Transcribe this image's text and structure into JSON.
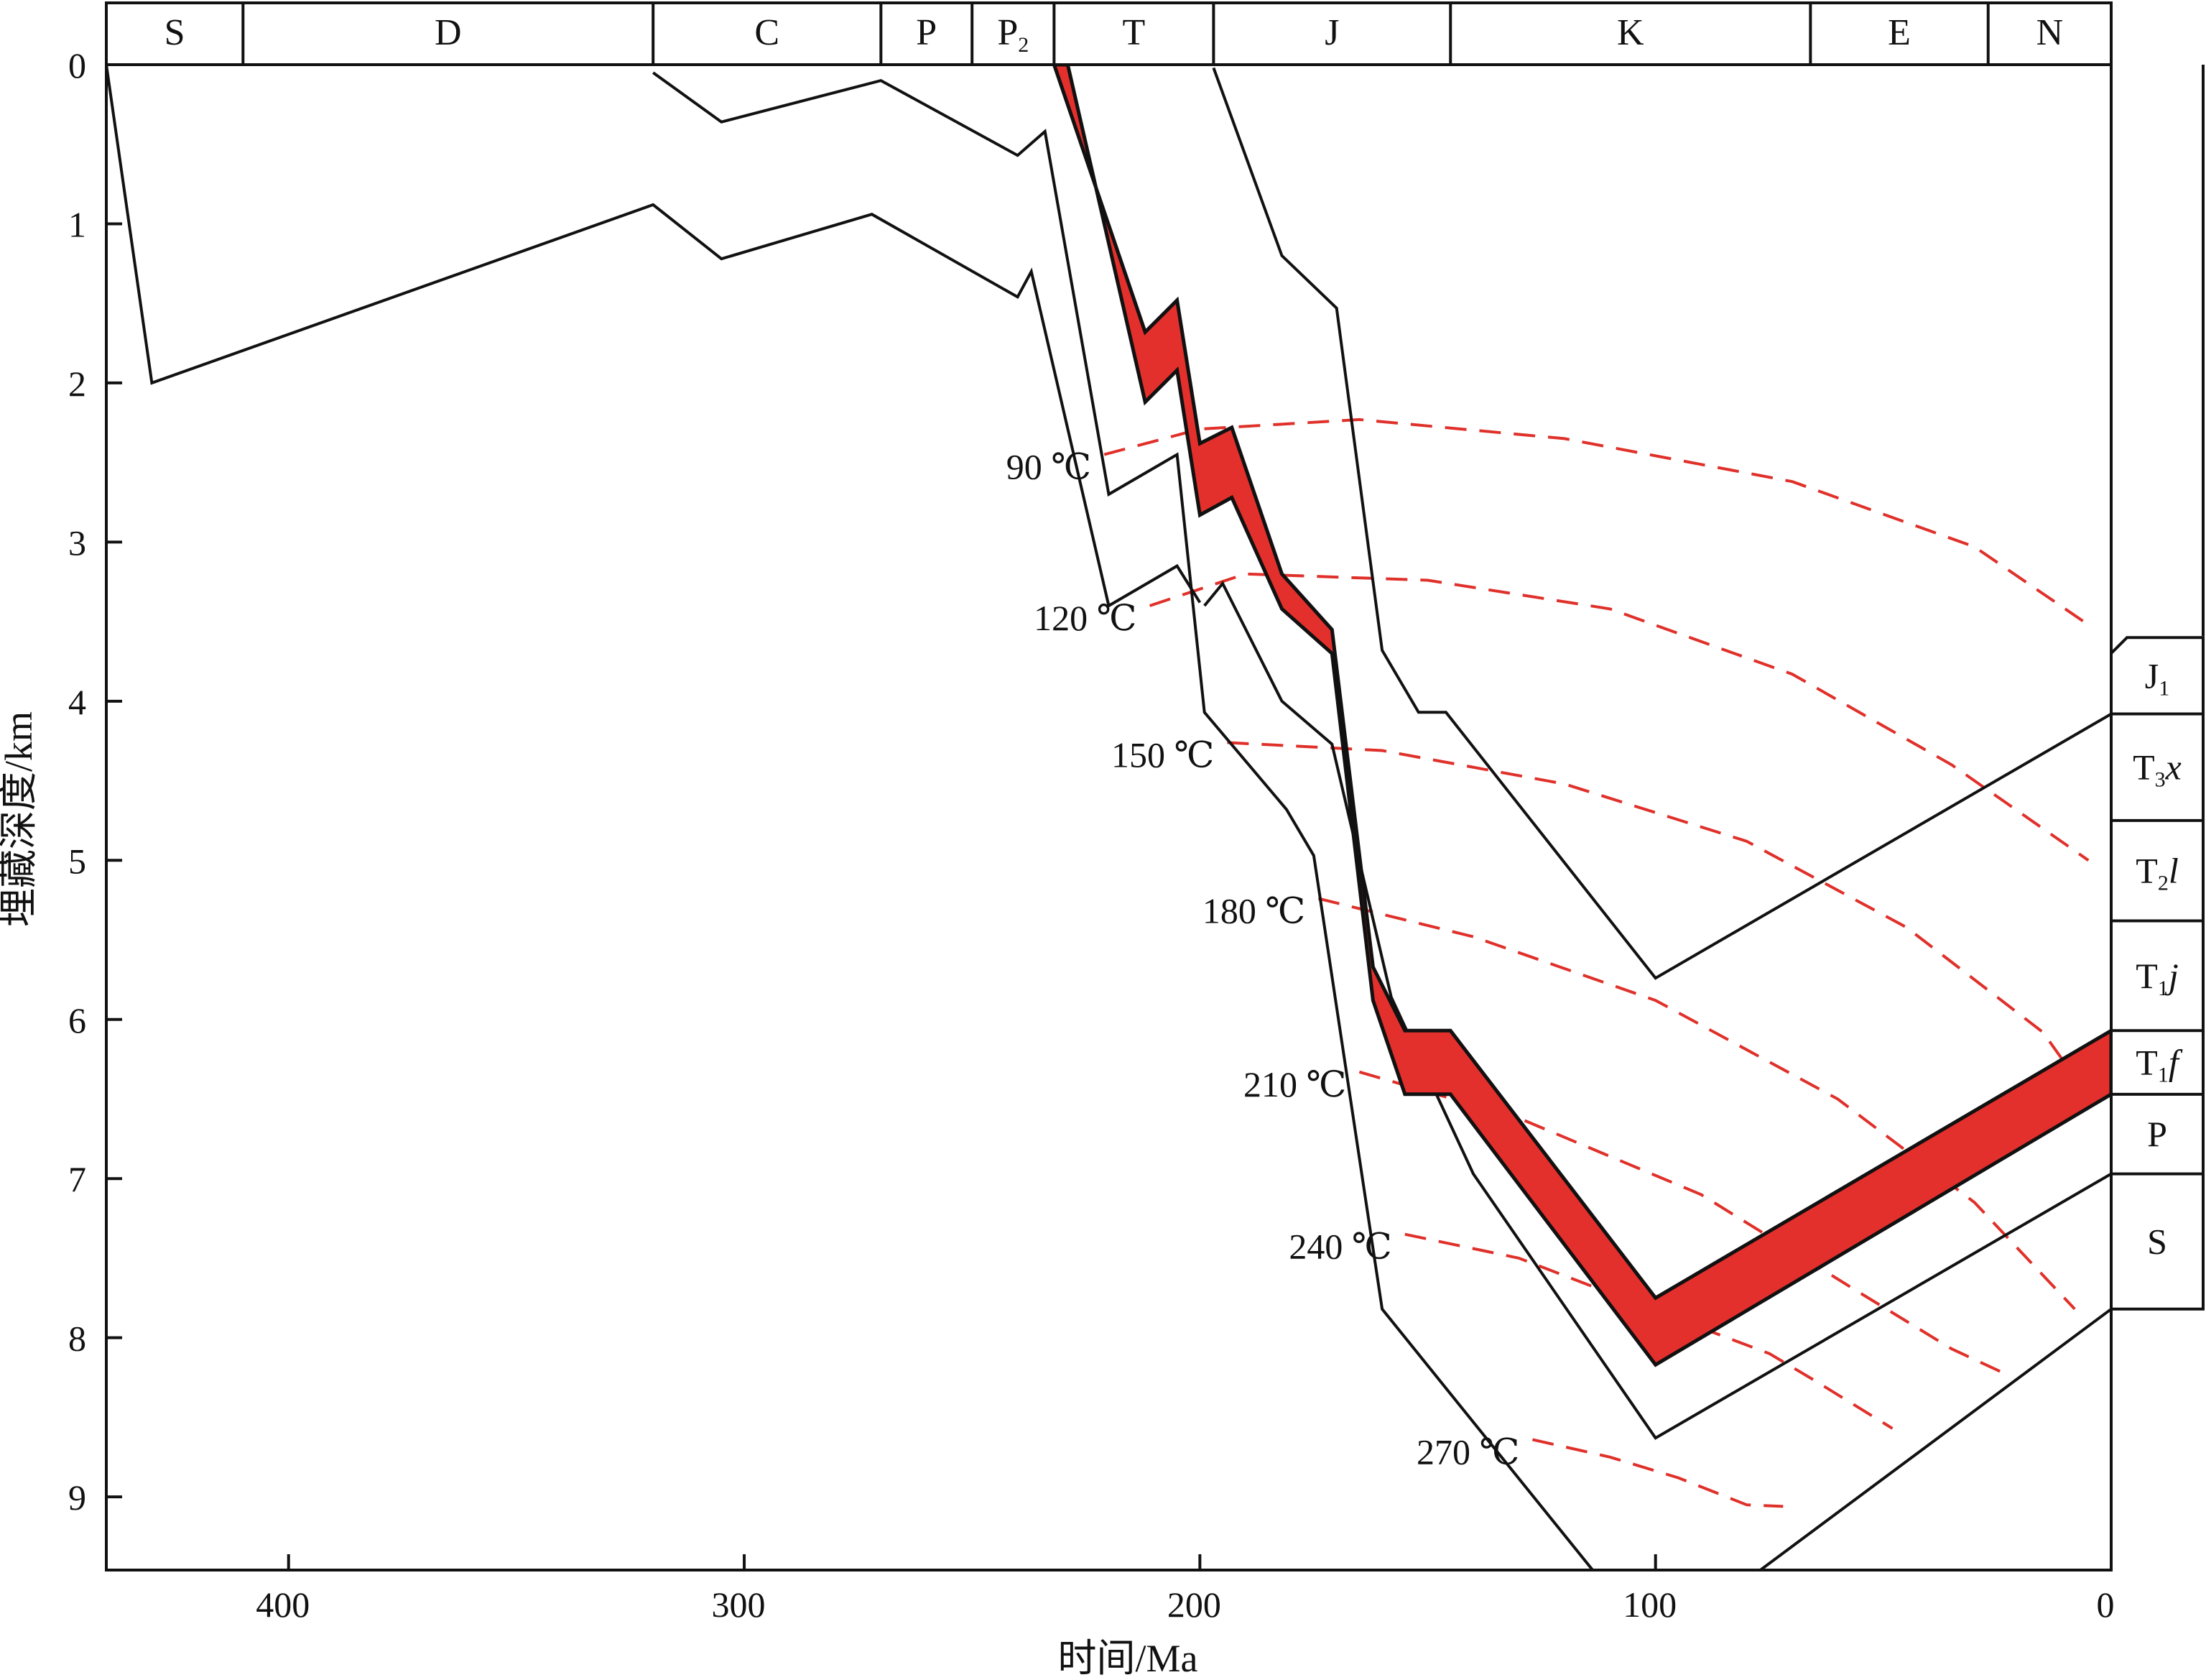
{
  "chart_data": {
    "type": "line",
    "title": "",
    "xlabel": "时间/Ma",
    "ylabel": "埋藏深度/km",
    "xlim": [
      440,
      0
    ],
    "ylim": [
      9.46,
      0
    ],
    "x_ticks": [
      400,
      300,
      200,
      100,
      0
    ],
    "y_ticks": [
      0,
      1,
      2,
      3,
      4,
      5,
      6,
      7,
      8,
      9
    ],
    "grid": false,
    "legend": "none",
    "colors": {
      "line": "#111111",
      "highlight": "#e3302c",
      "isotherm": "#e0302a"
    },
    "periods": [
      {
        "label": "S",
        "start": 440,
        "end": 410
      },
      {
        "label": "D",
        "start": 410,
        "end": 320
      },
      {
        "label": "C",
        "start": 320,
        "end": 270
      },
      {
        "label": "P",
        "start": 270,
        "end": 250
      },
      {
        "label": "P",
        "sub": "2",
        "start": 250,
        "end": 232
      },
      {
        "label": "T",
        "start": 232,
        "end": 197
      },
      {
        "label": "J",
        "start": 197,
        "end": 145
      },
      {
        "label": "K",
        "start": 145,
        "end": 66
      },
      {
        "label": "E",
        "start": 66,
        "end": 27
      },
      {
        "label": "N",
        "start": 27,
        "end": 0
      }
    ],
    "burial_curves": [
      {
        "x": [
          440,
          430,
          320,
          305,
          272,
          240,
          237,
          220,
          205,
          200
        ],
        "y": [
          0,
          2.0,
          0.88,
          1.22,
          0.94,
          1.46,
          1.3,
          3.4,
          3.15,
          3.38
        ]
      },
      {
        "x": [
          320,
          305,
          270,
          240,
          234,
          220,
          205,
          199,
          181,
          175,
          160,
          100,
          0
        ],
        "y": [
          0.05,
          0.36,
          0.1,
          0.57,
          0.42,
          2.7,
          2.45,
          4.07,
          4.68,
          4.97,
          7.82,
          9.95,
          7.82
        ]
      },
      {
        "x": [
          199,
          195,
          182,
          171,
          158,
          140,
          100,
          0
        ],
        "y": [
          3.4,
          3.26,
          4.0,
          4.27,
          5.86,
          6.97,
          8.63,
          6.97
        ]
      },
      {
        "x": [
          197,
          182,
          170,
          160,
          152,
          146,
          100,
          0
        ],
        "y": [
          0.02,
          1.2,
          1.53,
          3.68,
          4.07,
          4.07,
          5.74,
          4.08
        ]
      }
    ],
    "highlight_band": {
      "upper": {
        "x": [
          232,
          212,
          205,
          200,
          193,
          182,
          171,
          162,
          155,
          145,
          100,
          0
        ],
        "y": [
          0.0,
          1.68,
          1.48,
          2.38,
          2.28,
          3.2,
          3.55,
          5.67,
          6.07,
          6.07,
          7.75,
          6.07
        ]
      },
      "lower": {
        "x": [
          229,
          212,
          205,
          200,
          193,
          182,
          171,
          162,
          155,
          145,
          100,
          0
        ],
        "y": [
          0.0,
          2.12,
          1.92,
          2.83,
          2.72,
          3.42,
          3.7,
          5.88,
          6.47,
          6.47,
          8.17,
          6.47
        ]
      }
    },
    "isotherms": [
      {
        "label": "90 ℃",
        "x": [
          221,
          200,
          165,
          120,
          70,
          30,
          5
        ],
        "y": [
          2.45,
          2.29,
          2.23,
          2.35,
          2.62,
          3.03,
          3.52
        ]
      },
      {
        "label": "120 ℃",
        "x": [
          211,
          190,
          150,
          110,
          70,
          35,
          5
        ],
        "y": [
          3.4,
          3.2,
          3.24,
          3.42,
          3.83,
          4.4,
          5.0
        ]
      },
      {
        "label": "150 ℃",
        "x": [
          194,
          160,
          120,
          80,
          45,
          15,
          5
        ],
        "y": [
          4.26,
          4.31,
          4.52,
          4.88,
          5.42,
          6.08,
          6.48
        ]
      },
      {
        "label": "180 ℃",
        "x": [
          174,
          140,
          100,
          60,
          30,
          8
        ],
        "y": [
          5.24,
          5.48,
          5.88,
          6.5,
          7.15,
          7.82
        ]
      },
      {
        "label": "210 ℃",
        "x": [
          165,
          130,
          90,
          55,
          35,
          23
        ],
        "y": [
          6.33,
          6.62,
          7.1,
          7.72,
          8.07,
          8.23
        ]
      },
      {
        "label": "240 ℃",
        "x": [
          155,
          130,
          100,
          75,
          65,
          48
        ],
        "y": [
          7.35,
          7.5,
          7.83,
          8.1,
          8.27,
          8.57
        ]
      },
      {
        "label": "270 ℃",
        "x": [
          127,
          110,
          95,
          80,
          72
        ],
        "y": [
          8.64,
          8.75,
          8.88,
          9.05,
          9.06
        ]
      }
    ],
    "strata": [
      {
        "label": "J",
        "sub": "1",
        "italic": "",
        "top": 3.6,
        "bottom": 4.08
      },
      {
        "label": "T",
        "sub": "3",
        "italic": "x",
        "top": 4.08,
        "bottom": 4.75
      },
      {
        "label": "T",
        "sub": "2",
        "italic": "l",
        "top": 4.75,
        "bottom": 5.38
      },
      {
        "label": "T",
        "sub": "1",
        "italic": "j",
        "top": 5.38,
        "bottom": 6.07
      },
      {
        "label": "T",
        "sub": "1",
        "italic": "f",
        "top": 6.07,
        "bottom": 6.47
      },
      {
        "label": "P",
        "sub": "",
        "italic": "",
        "top": 6.47,
        "bottom": 6.97
      },
      {
        "label": "S",
        "sub": "",
        "italic": "",
        "top": 6.97,
        "bottom": 7.82
      }
    ]
  }
}
